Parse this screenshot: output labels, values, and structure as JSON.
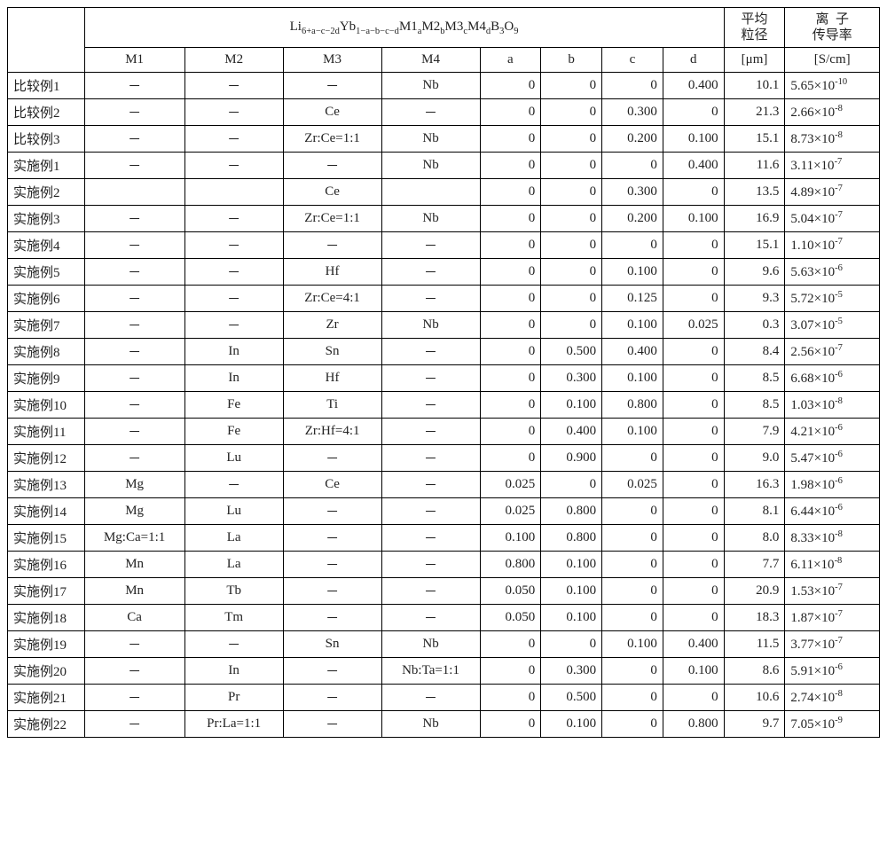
{
  "formula": "Li<sub>6+a−c−2d</sub>Yb<sub>1−a−b−c−d</sub>M1<sub>a</sub>M2<sub>b</sub>M3<sub>c</sub>M4<sub>d</sub>B<sub>3</sub>O<sub>9</sub>",
  "header": {
    "M1": "M1",
    "M2": "M2",
    "M3": "M3",
    "M4": "M4",
    "a": "a",
    "b": "b",
    "c": "c",
    "d": "d",
    "size_top": "平均<br>粒径",
    "size_unit": "[μm]",
    "cond_top": "离&nbsp;&nbsp;子<br>传导率",
    "cond_unit": "[S/cm]"
  },
  "col_widths": {
    "label": 78,
    "M1": 102,
    "M2": 100,
    "M3": 100,
    "M4": 100,
    "a": 62,
    "b": 62,
    "c": 62,
    "d": 62,
    "size": 62,
    "cond": 96
  },
  "rows": [
    {
      "label": "比较例1",
      "M1": "－",
      "M2": "－",
      "M3": "－",
      "M4": "Nb",
      "a": "0",
      "b": "0",
      "c": "0",
      "d": "0.400",
      "size": "10.1",
      "cond": "5.65×10<sup>-10</sup>"
    },
    {
      "label": "比较例2",
      "M1": "－",
      "M2": "－",
      "M3": "Ce",
      "M4": "－",
      "a": "0",
      "b": "0",
      "c": "0.300",
      "d": "0",
      "size": "21.3",
      "cond": "2.66×10<sup>-8</sup>"
    },
    {
      "label": "比较例3",
      "M1": "－",
      "M2": "－",
      "M3": "Zr:Ce=1:1",
      "M4": "Nb",
      "a": "0",
      "b": "0",
      "c": "0.200",
      "d": "0.100",
      "size": "15.1",
      "cond": "8.73×10<sup>-8</sup>"
    },
    {
      "label": "实施例1",
      "M1": "－",
      "M2": "－",
      "M3": "－",
      "M4": "Nb",
      "a": "0",
      "b": "0",
      "c": "0",
      "d": "0.400",
      "size": "11.6",
      "cond": "3.11×10<sup>-7</sup>"
    },
    {
      "label": "实施例2",
      "M1": "",
      "M2": "",
      "M3": "Ce",
      "M4": "",
      "a": "0",
      "b": "0",
      "c": "0.300",
      "d": "0",
      "size": "13.5",
      "cond": "4.89×10<sup>-7</sup>"
    },
    {
      "label": "实施例3",
      "M1": "－",
      "M2": "－",
      "M3": "Zr:Ce=1:1",
      "M4": "Nb",
      "a": "0",
      "b": "0",
      "c": "0.200",
      "d": "0.100",
      "size": "16.9",
      "cond": "5.04×10<sup>-7</sup>"
    },
    {
      "label": "实施例4",
      "M1": "－",
      "M2": "－",
      "M3": "－",
      "M4": "－",
      "a": "0",
      "b": "0",
      "c": "0",
      "d": "0",
      "size": "15.1",
      "cond": "1.10×10<sup>-7</sup>"
    },
    {
      "label": "实施例5",
      "M1": "－",
      "M2": "－",
      "M3": "Hf",
      "M4": "－",
      "a": "0",
      "b": "0",
      "c": "0.100",
      "d": "0",
      "size": "9.6",
      "cond": "5.63×10<sup>-6</sup>"
    },
    {
      "label": "实施例6",
      "M1": "－",
      "M2": "－",
      "M3": "Zr:Ce=4:1",
      "M4": "－",
      "a": "0",
      "b": "0",
      "c": "0.125",
      "d": "0",
      "size": "9.3",
      "cond": "5.72×10<sup>-5</sup>"
    },
    {
      "label": "实施例7",
      "M1": "－",
      "M2": "－",
      "M3": "Zr",
      "M4": "Nb",
      "a": "0",
      "b": "0",
      "c": "0.100",
      "d": "0.025",
      "size": "0.3",
      "cond": "3.07×10<sup>-5</sup>"
    },
    {
      "label": "实施例8",
      "M1": "－",
      "M2": "In",
      "M3": "Sn",
      "M4": "－",
      "a": "0",
      "b": "0.500",
      "c": "0.400",
      "d": "0",
      "size": "8.4",
      "cond": "2.56×10<sup>-7</sup>"
    },
    {
      "label": "实施例9",
      "M1": "－",
      "M2": "In",
      "M3": "Hf",
      "M4": "－",
      "a": "0",
      "b": "0.300",
      "c": "0.100",
      "d": "0",
      "size": "8.5",
      "cond": "6.68×10<sup>-6</sup>"
    },
    {
      "label": "实施例10",
      "M1": "－",
      "M2": "Fe",
      "M3": "Ti",
      "M4": "－",
      "a": "0",
      "b": "0.100",
      "c": "0.800",
      "d": "0",
      "size": "8.5",
      "cond": "1.03×10<sup>-8</sup>"
    },
    {
      "label": "实施例11",
      "M1": "－",
      "M2": "Fe",
      "M3": "Zr:Hf=4:1",
      "M4": "－",
      "a": "0",
      "b": "0.400",
      "c": "0.100",
      "d": "0",
      "size": "7.9",
      "cond": "4.21×10<sup>-6</sup>"
    },
    {
      "label": "实施例12",
      "M1": "－",
      "M2": "Lu",
      "M3": "－",
      "M4": "－",
      "a": "0",
      "b": "0.900",
      "c": "0",
      "d": "0",
      "size": "9.0",
      "cond": "5.47×10<sup>-6</sup>"
    },
    {
      "label": "实施例13",
      "M1": "Mg",
      "M2": "－",
      "M3": "Ce",
      "M4": "－",
      "a": "0.025",
      "b": "0",
      "c": "0.025",
      "d": "0",
      "size": "16.3",
      "cond": "1.98×10<sup>-6</sup>"
    },
    {
      "label": "实施例14",
      "M1": "Mg",
      "M2": "Lu",
      "M3": "－",
      "M4": "－",
      "a": "0.025",
      "b": "0.800",
      "c": "0",
      "d": "0",
      "size": "8.1",
      "cond": "6.44×10<sup>-6</sup>"
    },
    {
      "label": "实施例15",
      "M1": "Mg:Ca=1:1",
      "M2": "La",
      "M3": "－",
      "M4": "－",
      "a": "0.100",
      "b": "0.800",
      "c": "0",
      "d": "0",
      "size": "8.0",
      "cond": "8.33×10<sup>-8</sup>"
    },
    {
      "label": "实施例16",
      "M1": "Mn",
      "M2": "La",
      "M3": "－",
      "M4": "－",
      "a": "0.800",
      "b": "0.100",
      "c": "0",
      "d": "0",
      "size": "7.7",
      "cond": "6.11×10<sup>-8</sup>"
    },
    {
      "label": "实施例17",
      "M1": "Mn",
      "M2": "Tb",
      "M3": "－",
      "M4": "－",
      "a": "0.050",
      "b": "0.100",
      "c": "0",
      "d": "0",
      "size": "20.9",
      "cond": "1.53×10<sup>-7</sup>"
    },
    {
      "label": "实施例18",
      "M1": "Ca",
      "M2": "Tm",
      "M3": "－",
      "M4": "－",
      "a": "0.050",
      "b": "0.100",
      "c": "0",
      "d": "0",
      "size": "18.3",
      "cond": "1.87×10<sup>-7</sup>"
    },
    {
      "label": "实施例19",
      "M1": "－",
      "M2": "－",
      "M3": "Sn",
      "M4": "Nb",
      "a": "0",
      "b": "0",
      "c": "0.100",
      "d": "0.400",
      "size": "11.5",
      "cond": "3.77×10<sup>-7</sup>"
    },
    {
      "label": "实施例20",
      "M1": "－",
      "M2": "In",
      "M3": "－",
      "M4": "Nb:Ta=1:1",
      "a": "0",
      "b": "0.300",
      "c": "0",
      "d": "0.100",
      "size": "8.6",
      "cond": "5.91×10<sup>-6</sup>"
    },
    {
      "label": "实施例21",
      "M1": "－",
      "M2": "Pr",
      "M3": "－",
      "M4": "－",
      "a": "0",
      "b": "0.500",
      "c": "0",
      "d": "0",
      "size": "10.6",
      "cond": "2.74×10<sup>-8</sup>"
    },
    {
      "label": "实施例22",
      "M1": "－",
      "M2": "Pr:La=1:1",
      "M3": "－",
      "M4": "Nb",
      "a": "0",
      "b": "0.100",
      "c": "0",
      "d": "0.800",
      "size": "9.7",
      "cond": "7.05×10<sup>-9</sup>"
    }
  ]
}
